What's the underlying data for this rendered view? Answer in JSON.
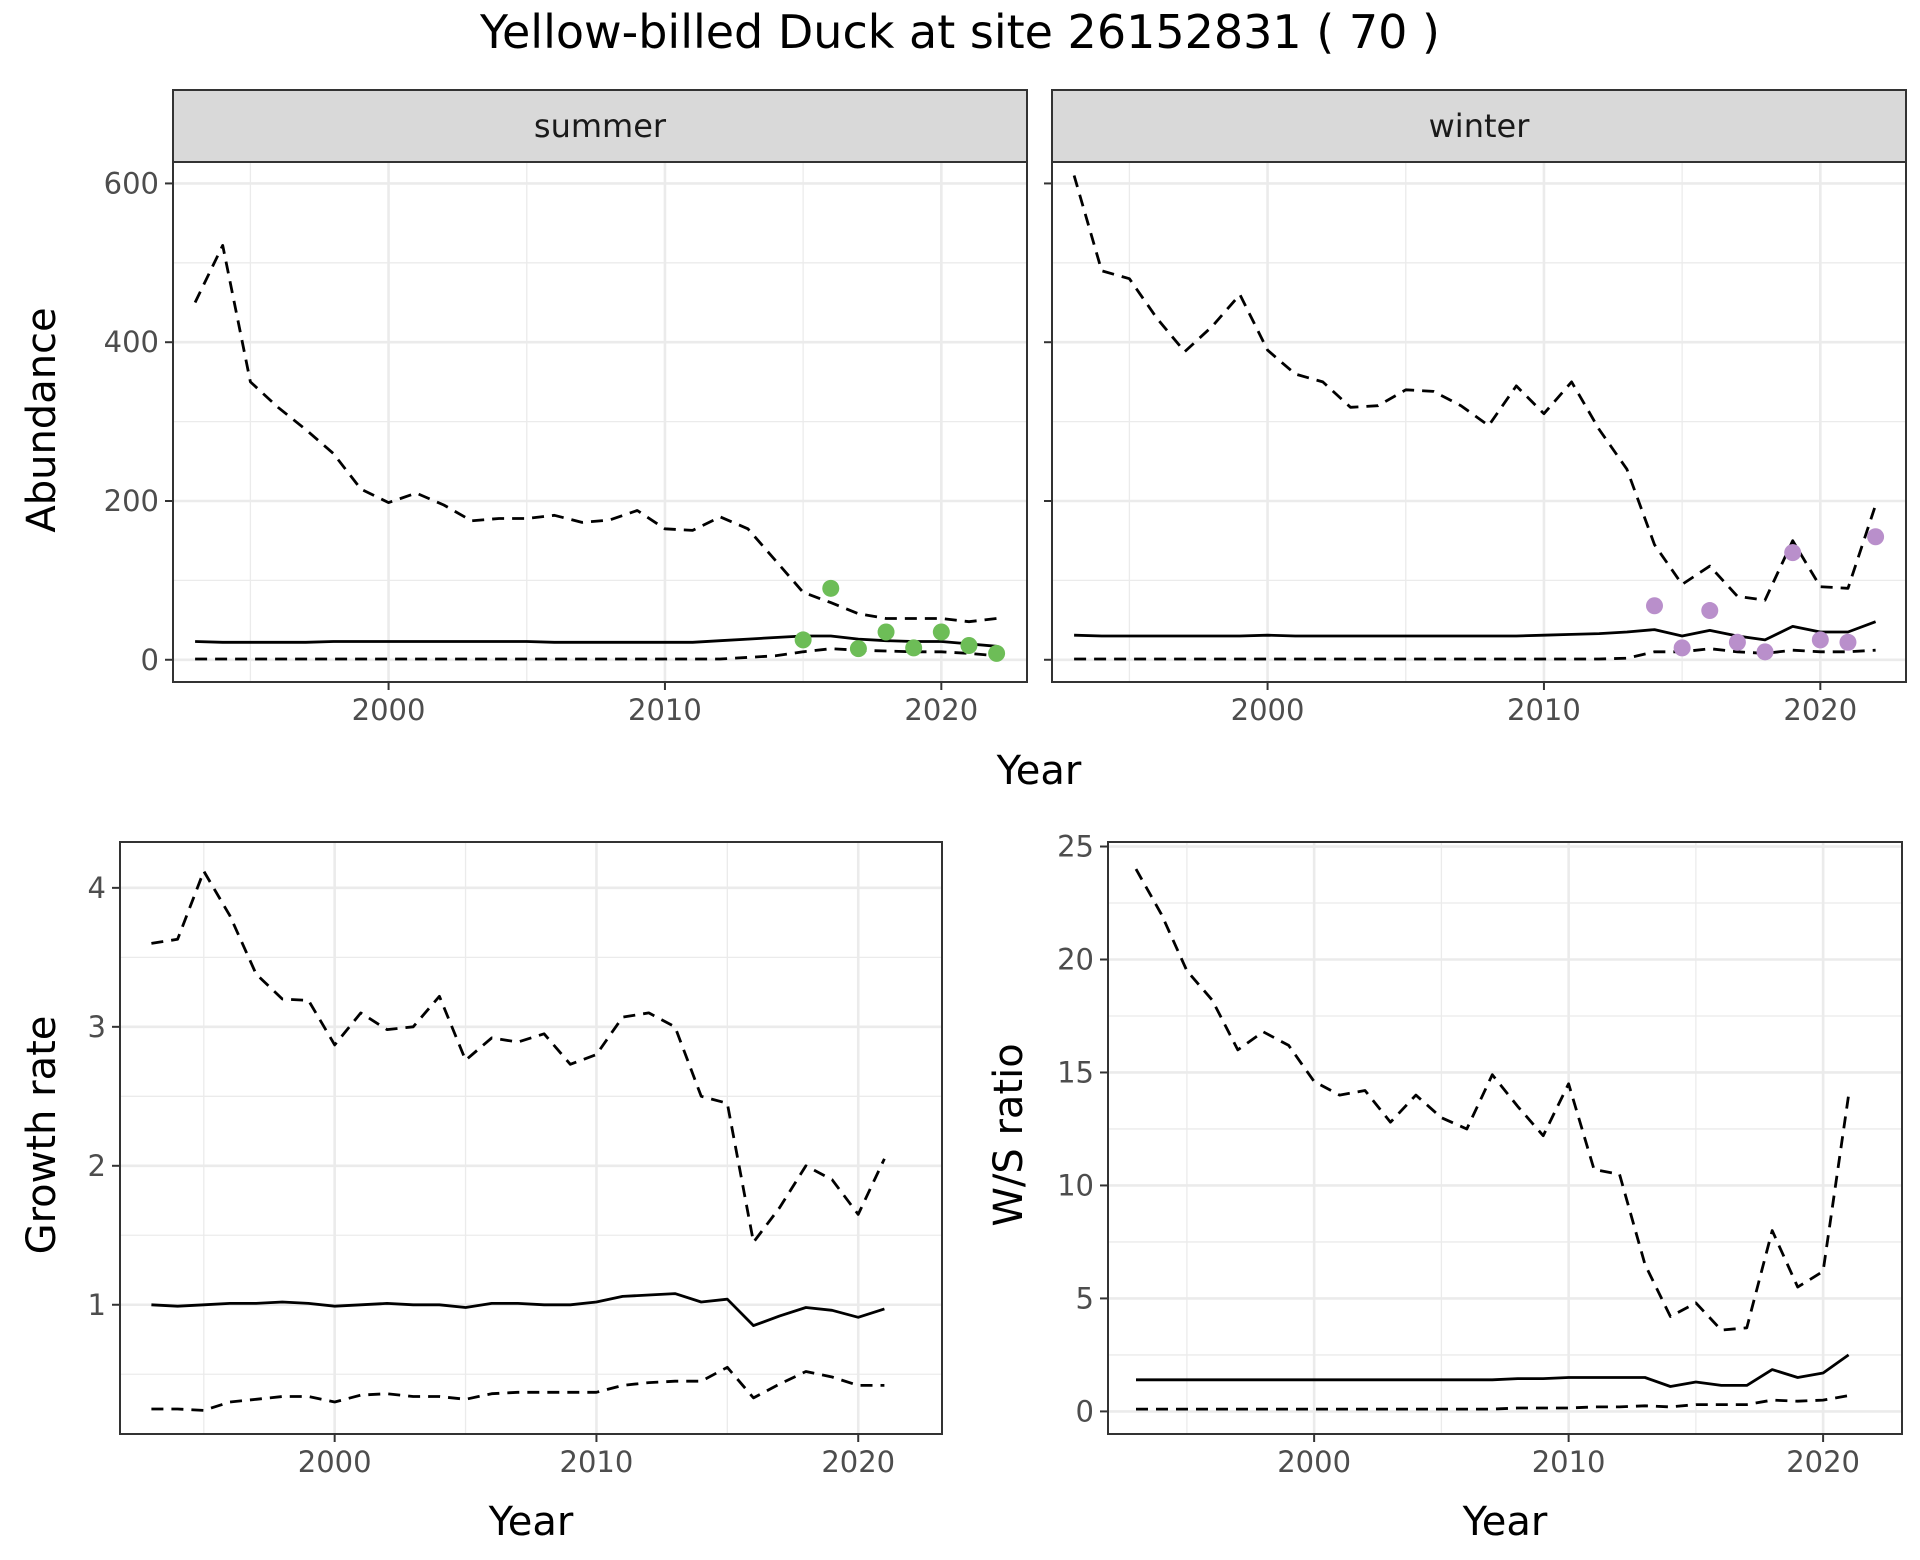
{
  "title": "Yellow-billed Duck at site 26152831 ( 70 )",
  "colors": {
    "summer_points": "#6dbd57",
    "winter_points": "#b98fcb",
    "line": "#000000",
    "grid": "#ebebeb",
    "strip": "#d9d9d9"
  },
  "chart_data": [
    {
      "id": "summer",
      "type": "line",
      "strip_label": "summer",
      "ylabel": "Abundance",
      "xlim": [
        1992.2,
        2023.1
      ],
      "ylim": [
        -28,
        627
      ],
      "xticks": [
        2000,
        2010,
        2020
      ],
      "yticks": [
        0,
        200,
        400,
        600
      ],
      "series": [
        {
          "name": "upper",
          "style": "dashed",
          "x": [
            1993,
            1994,
            1995,
            1996,
            1997,
            1998,
            1999,
            2000,
            2001,
            2002,
            2003,
            2004,
            2005,
            2006,
            2007,
            2008,
            2009,
            2010,
            2011,
            2012,
            2013,
            2014,
            2015,
            2016,
            2017,
            2018,
            2019,
            2020,
            2021,
            2022
          ],
          "values": [
            450,
            522,
            350,
            318,
            290,
            260,
            215,
            198,
            210,
            195,
            175,
            178,
            178,
            182,
            173,
            176,
            188,
            165,
            163,
            180,
            165,
            125,
            85,
            72,
            58,
            52,
            52,
            52,
            48,
            52
          ]
        },
        {
          "name": "mean",
          "style": "solid",
          "x": [
            1993,
            1994,
            1995,
            1996,
            1997,
            1998,
            1999,
            2000,
            2001,
            2002,
            2003,
            2004,
            2005,
            2006,
            2007,
            2008,
            2009,
            2010,
            2011,
            2012,
            2013,
            2014,
            2015,
            2016,
            2017,
            2018,
            2019,
            2020,
            2021,
            2022
          ],
          "values": [
            23,
            22,
            22,
            22,
            22,
            23,
            23,
            23,
            23,
            23,
            23,
            23,
            23,
            22,
            22,
            22,
            22,
            22,
            22,
            24,
            26,
            28,
            30,
            30,
            26,
            24,
            23,
            23,
            20,
            17
          ]
        },
        {
          "name": "lower",
          "style": "dashed",
          "x": [
            1993,
            1994,
            1995,
            1996,
            1997,
            1998,
            1999,
            2000,
            2001,
            2002,
            2003,
            2004,
            2005,
            2006,
            2007,
            2008,
            2009,
            2010,
            2011,
            2012,
            2013,
            2014,
            2015,
            2016,
            2017,
            2018,
            2019,
            2020,
            2021,
            2022
          ],
          "values": [
            1,
            1,
            1,
            1,
            1,
            1,
            1,
            1,
            1,
            1,
            1,
            1,
            1,
            1,
            1,
            1,
            1,
            1,
            1,
            1,
            3,
            5,
            10,
            14,
            12,
            11,
            10,
            10,
            8,
            5
          ]
        }
      ],
      "points": {
        "name": "observed",
        "x": [
          2015,
          2016,
          2017,
          2018,
          2019,
          2020,
          2021,
          2022
        ],
        "values": [
          25,
          90,
          14,
          35,
          15,
          35,
          18,
          8
        ]
      }
    },
    {
      "id": "winter",
      "type": "line",
      "strip_label": "winter",
      "ylabel": "",
      "xlim": [
        1992.2,
        2023.1
      ],
      "ylim": [
        -28,
        627
      ],
      "xticks": [
        2000,
        2010,
        2020
      ],
      "yticks": [
        0,
        200,
        400,
        600
      ],
      "series": [
        {
          "name": "upper",
          "style": "dashed",
          "x": [
            1993,
            1994,
            1995,
            1996,
            1997,
            1998,
            1999,
            2000,
            2001,
            2002,
            2003,
            2004,
            2005,
            2006,
            2007,
            2008,
            2009,
            2010,
            2011,
            2012,
            2013,
            2014,
            2015,
            2016,
            2017,
            2018,
            2019,
            2020,
            2021,
            2022
          ],
          "values": [
            610,
            490,
            480,
            430,
            388,
            420,
            460,
            390,
            360,
            350,
            318,
            320,
            340,
            338,
            320,
            295,
            345,
            310,
            350,
            290,
            240,
            145,
            95,
            118,
            80,
            75,
            150,
            92,
            90,
            195
          ]
        },
        {
          "name": "mean",
          "style": "solid",
          "x": [
            1993,
            1994,
            1995,
            1996,
            1997,
            1998,
            1999,
            2000,
            2001,
            2002,
            2003,
            2004,
            2005,
            2006,
            2007,
            2008,
            2009,
            2010,
            2011,
            2012,
            2013,
            2014,
            2015,
            2016,
            2017,
            2018,
            2019,
            2020,
            2021,
            2022
          ],
          "values": [
            31,
            30,
            30,
            30,
            30,
            30,
            30,
            31,
            30,
            30,
            30,
            30,
            30,
            30,
            30,
            30,
            30,
            31,
            32,
            33,
            35,
            38,
            30,
            37,
            30,
            25,
            42,
            35,
            35,
            48
          ]
        },
        {
          "name": "lower",
          "style": "dashed",
          "x": [
            1993,
            1994,
            1995,
            1996,
            1997,
            1998,
            1999,
            2000,
            2001,
            2002,
            2003,
            2004,
            2005,
            2006,
            2007,
            2008,
            2009,
            2010,
            2011,
            2012,
            2013,
            2014,
            2015,
            2016,
            2017,
            2018,
            2019,
            2020,
            2021,
            2022
          ],
          "values": [
            1,
            1,
            1,
            1,
            1,
            1,
            1,
            1,
            1,
            1,
            1,
            1,
            1,
            1,
            1,
            1,
            1,
            1,
            1,
            1,
            2,
            10,
            10,
            14,
            10,
            8,
            12,
            10,
            10,
            12
          ]
        }
      ],
      "points": {
        "name": "observed",
        "x": [
          2014,
          2015,
          2016,
          2017,
          2018,
          2019,
          2020,
          2021,
          2022
        ],
        "values": [
          68,
          15,
          62,
          22,
          10,
          135,
          25,
          22,
          155
        ]
      }
    },
    {
      "id": "growth",
      "type": "line",
      "strip_label": "",
      "xlabel": "Year",
      "ylabel": "Growth rate",
      "xlim": [
        1991.8,
        2023.2
      ],
      "ylim": [
        0.07,
        4.33
      ],
      "xticks": [
        2000,
        2010,
        2020
      ],
      "yticks": [
        1,
        2,
        3,
        4
      ],
      "series": [
        {
          "name": "upper",
          "style": "dashed",
          "x": [
            1993,
            1994,
            1995,
            1996,
            1997,
            1998,
            1999,
            2000,
            2001,
            2002,
            2003,
            2004,
            2005,
            2006,
            2007,
            2008,
            2009,
            2010,
            2011,
            2012,
            2013,
            2014,
            2015,
            2016,
            2017,
            2018,
            2019,
            2020,
            2021
          ],
          "values": [
            3.6,
            3.63,
            4.12,
            3.8,
            3.38,
            3.2,
            3.19,
            2.87,
            3.1,
            2.98,
            3.0,
            3.22,
            2.76,
            2.92,
            2.89,
            2.95,
            2.73,
            2.8,
            3.07,
            3.1,
            3.0,
            2.5,
            2.45,
            1.45,
            1.7,
            2.0,
            1.9,
            1.65,
            2.05
          ]
        },
        {
          "name": "mean",
          "style": "solid",
          "x": [
            1993,
            1994,
            1995,
            1996,
            1997,
            1998,
            1999,
            2000,
            2001,
            2002,
            2003,
            2004,
            2005,
            2006,
            2007,
            2008,
            2009,
            2010,
            2011,
            2012,
            2013,
            2014,
            2015,
            2016,
            2017,
            2018,
            2019,
            2020,
            2021
          ],
          "values": [
            1.0,
            0.99,
            1.0,
            1.01,
            1.01,
            1.02,
            1.01,
            0.99,
            1.0,
            1.01,
            1.0,
            1.0,
            0.98,
            1.01,
            1.01,
            1.0,
            1.0,
            1.02,
            1.06,
            1.07,
            1.08,
            1.02,
            1.04,
            0.85,
            0.92,
            0.98,
            0.96,
            0.91,
            0.97
          ]
        },
        {
          "name": "lower",
          "style": "dashed",
          "x": [
            1993,
            1994,
            1995,
            1996,
            1997,
            1998,
            1999,
            2000,
            2001,
            2002,
            2003,
            2004,
            2005,
            2006,
            2007,
            2008,
            2009,
            2010,
            2011,
            2012,
            2013,
            2014,
            2015,
            2016,
            2017,
            2018,
            2019,
            2020,
            2021
          ],
          "values": [
            0.25,
            0.25,
            0.24,
            0.3,
            0.32,
            0.34,
            0.34,
            0.3,
            0.35,
            0.36,
            0.34,
            0.34,
            0.32,
            0.36,
            0.37,
            0.37,
            0.37,
            0.37,
            0.42,
            0.44,
            0.45,
            0.45,
            0.55,
            0.33,
            0.43,
            0.52,
            0.48,
            0.42,
            0.42
          ]
        }
      ]
    },
    {
      "id": "ratio",
      "type": "line",
      "strip_label": "",
      "xlabel": "Year",
      "ylabel": "W/S ratio",
      "xlim": [
        1991.9,
        2023.1
      ],
      "ylim": [
        -1.0,
        25.2
      ],
      "xticks": [
        2000,
        2010,
        2020
      ],
      "yticks": [
        0,
        5,
        10,
        15,
        20,
        25
      ],
      "series": [
        {
          "name": "upper",
          "style": "dashed",
          "x": [
            1993,
            1994,
            1995,
            1996,
            1997,
            1998,
            1999,
            2000,
            2001,
            2002,
            2003,
            2004,
            2005,
            2006,
            2007,
            2008,
            2009,
            2010,
            2011,
            2012,
            2013,
            2014,
            2015,
            2016,
            2017,
            2018,
            2019,
            2020,
            2021
          ],
          "values": [
            24.0,
            22.0,
            19.5,
            18.2,
            16.0,
            16.8,
            16.2,
            14.6,
            14.0,
            14.2,
            12.8,
            14.0,
            13.0,
            12.5,
            14.9,
            13.5,
            12.2,
            14.5,
            10.7,
            10.5,
            6.5,
            4.2,
            4.8,
            3.6,
            3.7,
            8.0,
            5.5,
            6.2,
            14.0
          ]
        },
        {
          "name": "mean",
          "style": "solid",
          "x": [
            1993,
            1994,
            1995,
            1996,
            1997,
            1998,
            1999,
            2000,
            2001,
            2002,
            2003,
            2004,
            2005,
            2006,
            2007,
            2008,
            2009,
            2010,
            2011,
            2012,
            2013,
            2014,
            2015,
            2016,
            2017,
            2018,
            2019,
            2020,
            2021
          ],
          "values": [
            1.4,
            1.4,
            1.4,
            1.4,
            1.4,
            1.4,
            1.4,
            1.4,
            1.4,
            1.4,
            1.4,
            1.4,
            1.4,
            1.4,
            1.4,
            1.45,
            1.45,
            1.5,
            1.5,
            1.5,
            1.5,
            1.1,
            1.3,
            1.15,
            1.15,
            1.85,
            1.5,
            1.7,
            2.5
          ]
        },
        {
          "name": "lower",
          "style": "dashed",
          "x": [
            1993,
            1994,
            1995,
            1996,
            1997,
            1998,
            1999,
            2000,
            2001,
            2002,
            2003,
            2004,
            2005,
            2006,
            2007,
            2008,
            2009,
            2010,
            2011,
            2012,
            2013,
            2014,
            2015,
            2016,
            2017,
            2018,
            2019,
            2020,
            2021
          ],
          "values": [
            0.1,
            0.1,
            0.1,
            0.1,
            0.1,
            0.1,
            0.1,
            0.1,
            0.1,
            0.1,
            0.1,
            0.1,
            0.1,
            0.1,
            0.1,
            0.15,
            0.15,
            0.15,
            0.2,
            0.2,
            0.25,
            0.2,
            0.3,
            0.3,
            0.3,
            0.5,
            0.45,
            0.5,
            0.7
          ]
        }
      ]
    }
  ],
  "shared_top_xlabel": "Year"
}
